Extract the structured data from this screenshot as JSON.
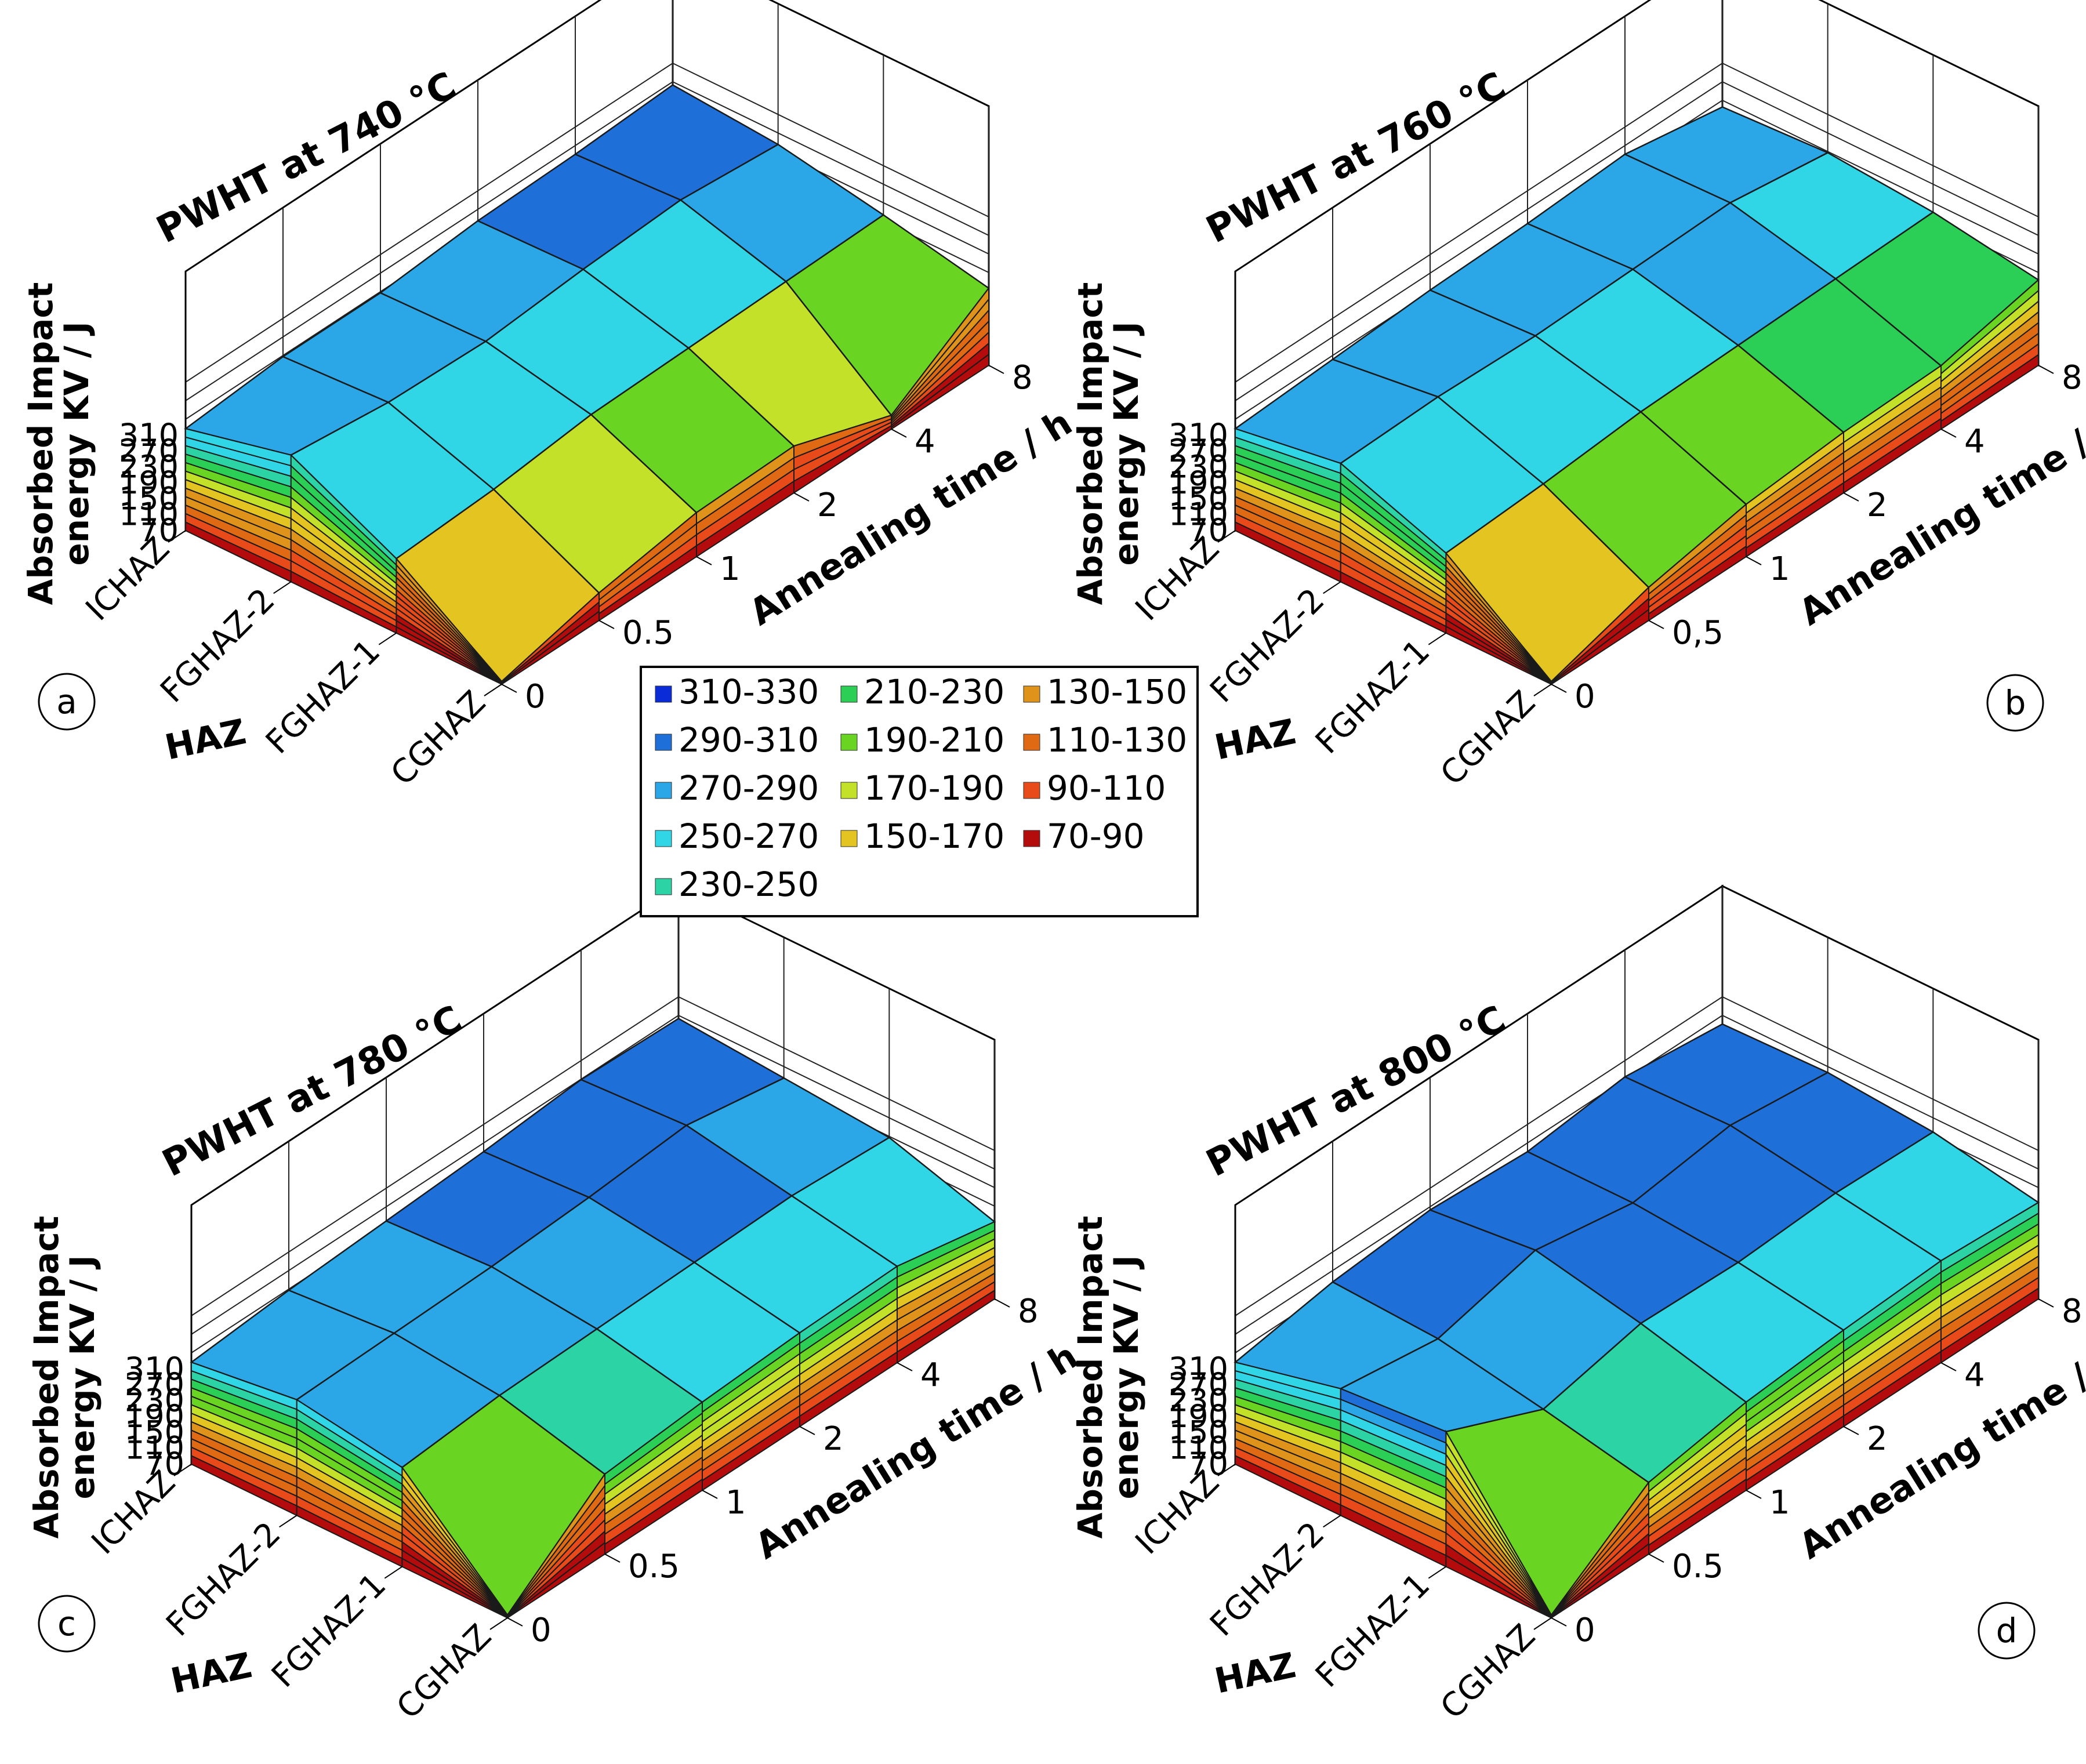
{
  "chart_data": [
    {
      "type": "surface3d",
      "panel": "a",
      "title": "PWHT at 740 °C",
      "zlabel": "Absorbed Impact energy KV / J",
      "xlabel": "HAZ",
      "ylabel": "Annealing time / h",
      "z_ticks": [
        "70",
        "110",
        "150",
        "190",
        "230",
        "270",
        "310"
      ],
      "zlim": [
        70,
        330
      ],
      "haz_zones": [
        "CGHAZ",
        "FGHAZ-1",
        "FGHAZ-2",
        "ICHAZ"
      ],
      "times": [
        "0",
        "0.5",
        "1",
        "2",
        "4",
        "8"
      ],
      "values": [
        [
          75,
          120,
          150,
          155,
          95,
          210
        ],
        [
          205,
          215,
          235,
          240,
          245,
          250
        ],
        [
          300,
          280,
          275,
          290,
          300,
          285
        ],
        [
          255,
          270,
          270,
          285,
          290,
          300
        ]
      ]
    },
    {
      "type": "surface3d",
      "panel": "b",
      "title": "PWHT at 760 °C",
      "zlabel": "Absorbed Impact energy KV / J",
      "xlabel": "HAZ",
      "ylabel": "Annealing time / h",
      "z_ticks": [
        "70",
        "110",
        "150",
        "190",
        "230",
        "270",
        "310"
      ],
      "zlim": [
        70,
        330
      ],
      "haz_zones": [
        "CGHAZ",
        "FGHAZ-1",
        "FGHAZ-2",
        "ICHAZ"
      ],
      "times": [
        "0",
        "0,5",
        "1",
        "2",
        "4",
        "8"
      ],
      "values": [
        [
          75,
          130,
          165,
          180,
          185,
          225
        ],
        [
          215,
          225,
          240,
          245,
          250,
          255
        ],
        [
          285,
          290,
          285,
          290,
          295,
          270
        ],
        [
          255,
          265,
          275,
          280,
          290,
          260
        ]
      ]
    },
    {
      "type": "surface3d",
      "panel": "c",
      "title": "PWHT at 780 °C",
      "zlabel": "Absorbed Impact energy KV / J",
      "xlabel": "HAZ",
      "ylabel": "Annealing time / h",
      "z_ticks": [
        "70",
        "110",
        "150",
        "190",
        "230",
        "270",
        "310"
      ],
      "zlim": [
        70,
        330
      ],
      "haz_zones": [
        "CGHAZ",
        "FGHAZ-1",
        "FGHAZ-2",
        "ICHAZ"
      ],
      "times": [
        "0",
        "0.5",
        "1",
        "2",
        "4",
        "8"
      ],
      "values": [
        [
          75,
          215,
          230,
          240,
          245,
          210
        ],
        [
          250,
          265,
          270,
          275,
          280,
          270
        ],
        [
          280,
          285,
          290,
          300,
          315,
          285
        ],
        [
          255,
          270,
          280,
          290,
          305,
          300
        ]
      ]
    },
    {
      "type": "surface3d",
      "panel": "d",
      "title": "PWHT at 800 °C",
      "zlabel": "Absorbed Impact energy KV / J",
      "xlabel": "HAZ",
      "ylabel": "Annealing time / h",
      "z_ticks": [
        "70",
        "110",
        "150",
        "190",
        "230",
        "270",
        "310"
      ],
      "zlim": [
        70,
        330
      ],
      "haz_zones": [
        "CGHAZ",
        "FGHAZ-1",
        "FGHAZ-2",
        "ICHAZ"
      ],
      "times": [
        "0",
        "0.5",
        "1",
        "2",
        "4",
        "8"
      ],
      "values": [
        [
          75,
          200,
          230,
          245,
          255,
          245
        ],
        [
          315,
          240,
          280,
          275,
          285,
          280
        ],
        [
          300,
          275,
          320,
          290,
          315,
          295
        ],
        [
          255,
          285,
          300,
          290,
          310,
          290
        ]
      ]
    }
  ],
  "legend": {
    "entries": [
      {
        "label": "310-330",
        "color": "#0a2cd8"
      },
      {
        "label": "290-310",
        "color": "#1e6fd8"
      },
      {
        "label": "270-290",
        "color": "#2ba6e6"
      },
      {
        "label": "250-270",
        "color": "#30d6e6"
      },
      {
        "label": "230-250",
        "color": "#2cd3a5"
      },
      {
        "label": "210-230",
        "color": "#2bcf55"
      },
      {
        "label": "190-210",
        "color": "#6ad422"
      },
      {
        "label": "170-190",
        "color": "#c2e128"
      },
      {
        "label": "150-170",
        "color": "#e3c420"
      },
      {
        "label": "130-150",
        "color": "#e0931a"
      },
      {
        "label": "110-130",
        "color": "#e06a14"
      },
      {
        "label": "90-110",
        "color": "#e84a1a"
      },
      {
        "label": "70-90",
        "color": "#b40c0c"
      }
    ]
  }
}
